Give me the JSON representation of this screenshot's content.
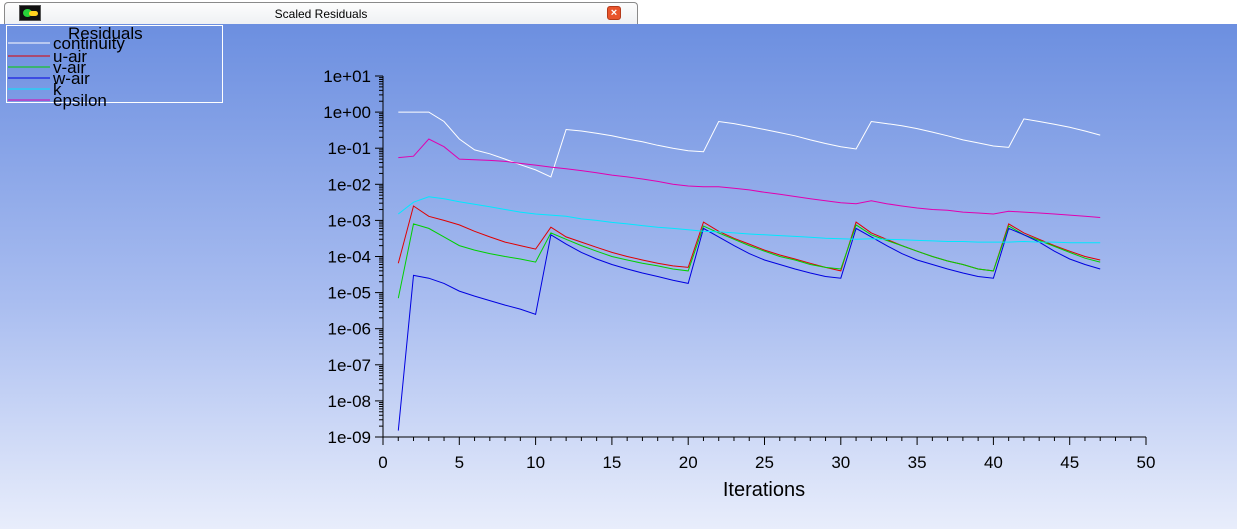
{
  "window": {
    "tab_title": "Scaled Residuals",
    "close_glyph": "×",
    "tab_icon": "fluent-app-icon",
    "close_icon": "close-icon"
  },
  "chart_data": {
    "type": "line",
    "title": "Residuals",
    "xlabel": "Iterations",
    "ylabel": "",
    "yscale": "log",
    "xlim": [
      0,
      50
    ],
    "ylim": [
      1e-09,
      10
    ],
    "xticks": [
      0,
      5,
      10,
      15,
      20,
      25,
      30,
      35,
      40,
      45,
      50
    ],
    "yticks": [
      1e-09,
      1e-08,
      1e-07,
      1e-06,
      1e-05,
      0.0001,
      0.001,
      0.01,
      0.1,
      1,
      10
    ],
    "ytick_labels": [
      "1e-09",
      "1e-08",
      "1e-07",
      "1e-06",
      "1e-05",
      "1e-04",
      "1e-03",
      "1e-02",
      "1e-01",
      "1e+00",
      "1e+01"
    ],
    "grid": false,
    "legend_position": "top-left",
    "x": [
      1,
      2,
      3,
      4,
      5,
      6,
      7,
      8,
      9,
      10,
      11,
      12,
      13,
      14,
      15,
      16,
      17,
      18,
      19,
      20,
      21,
      22,
      23,
      24,
      25,
      26,
      27,
      28,
      29,
      30,
      31,
      32,
      33,
      34,
      35,
      36,
      37,
      38,
      39,
      40,
      41,
      42,
      43,
      44,
      45,
      46,
      47
    ],
    "series": [
      {
        "name": "continuity",
        "color": "#ffffff",
        "values": [
          1.0,
          1.0,
          1.0,
          0.55,
          0.18,
          0.09,
          0.07,
          0.05,
          0.035,
          0.025,
          0.016,
          0.33,
          0.3,
          0.26,
          0.22,
          0.18,
          0.15,
          0.12,
          0.1,
          0.085,
          0.08,
          0.55,
          0.48,
          0.4,
          0.33,
          0.27,
          0.22,
          0.17,
          0.135,
          0.11,
          0.095,
          0.55,
          0.48,
          0.42,
          0.35,
          0.28,
          0.22,
          0.17,
          0.14,
          0.115,
          0.105,
          0.65,
          0.55,
          0.46,
          0.38,
          0.3,
          0.23
        ]
      },
      {
        "name": "u-air",
        "color": "#e00000",
        "values": [
          6.5e-05,
          0.0025,
          0.0013,
          0.001,
          0.00075,
          0.0005,
          0.00035,
          0.00025,
          0.0002,
          0.00016,
          0.00065,
          0.00035,
          0.00025,
          0.00018,
          0.00013,
          0.0001,
          8e-05,
          6.5e-05,
          5.5e-05,
          5e-05,
          0.0009,
          0.0005,
          0.00032,
          0.00022,
          0.00015,
          0.00011,
          8.5e-05,
          6.5e-05,
          5e-05,
          4e-05,
          0.0009,
          0.00045,
          0.0003,
          0.0002,
          0.00014,
          0.0001,
          7.5e-05,
          6e-05,
          4.5e-05,
          4e-05,
          0.0008,
          0.00045,
          0.0003,
          0.0002,
          0.00014,
          0.0001,
          8e-05
        ]
      },
      {
        "name": "v-air",
        "color": "#00d000",
        "values": [
          7e-06,
          0.0008,
          0.0006,
          0.00035,
          0.0002,
          0.00015,
          0.00012,
          0.0001,
          8.5e-05,
          7e-05,
          0.00045,
          0.0003,
          0.0002,
          0.00014,
          0.0001,
          8e-05,
          6.5e-05,
          5.5e-05,
          4.5e-05,
          4e-05,
          0.0007,
          0.00045,
          0.0003,
          0.0002,
          0.00014,
          0.0001,
          8e-05,
          6e-05,
          5e-05,
          4.5e-05,
          0.00075,
          0.0004,
          0.00028,
          0.0002,
          0.00014,
          0.0001,
          7.5e-05,
          6e-05,
          4.5e-05,
          4e-05,
          0.0007,
          0.0004,
          0.00028,
          0.00019,
          0.00013,
          9e-05,
          7e-05
        ]
      },
      {
        "name": "w-air",
        "color": "#0000e0",
        "values": [
          1.5e-09,
          3e-05,
          2.5e-05,
          1.8e-05,
          1.1e-05,
          8e-06,
          6e-06,
          4.5e-06,
          3.5e-06,
          2.5e-06,
          0.0004,
          0.00022,
          0.00013,
          8.5e-05,
          6e-05,
          4.5e-05,
          3.5e-05,
          2.8e-05,
          2.2e-05,
          1.8e-05,
          0.0006,
          0.00035,
          0.0002,
          0.00012,
          8e-05,
          6e-05,
          4.5e-05,
          3.5e-05,
          2.8e-05,
          2.5e-05,
          0.0006,
          0.00035,
          0.0002,
          0.00012,
          8e-05,
          6e-05,
          4.5e-05,
          3.5e-05,
          2.8e-05,
          2.5e-05,
          0.0006,
          0.0004,
          0.00025,
          0.00014,
          8.5e-05,
          6e-05,
          4.5e-05
        ]
      },
      {
        "name": "k",
        "color": "#00e8ff",
        "values": [
          0.0015,
          0.0032,
          0.0045,
          0.004,
          0.0033,
          0.0028,
          0.0024,
          0.002,
          0.0017,
          0.0015,
          0.0014,
          0.0013,
          0.0011,
          0.001,
          0.00088,
          0.0008,
          0.00072,
          0.00065,
          0.0006,
          0.00055,
          0.0005,
          0.00048,
          0.00045,
          0.00042,
          0.0004,
          0.00038,
          0.00036,
          0.00034,
          0.00032,
          0.00031,
          0.0003,
          0.00031,
          0.0003,
          0.00029,
          0.00028,
          0.00027,
          0.00026,
          0.00026,
          0.00025,
          0.00025,
          0.00025,
          0.00026,
          0.00025,
          0.00025,
          0.00024,
          0.00024,
          0.00024
        ]
      },
      {
        "name": "epsilon",
        "color": "#e000b0",
        "values": [
          0.055,
          0.06,
          0.18,
          0.11,
          0.05,
          0.048,
          0.046,
          0.043,
          0.038,
          0.034,
          0.03,
          0.027,
          0.024,
          0.021,
          0.018,
          0.016,
          0.014,
          0.012,
          0.01,
          0.009,
          0.0085,
          0.0085,
          0.0078,
          0.007,
          0.006,
          0.0053,
          0.0046,
          0.004,
          0.0035,
          0.0031,
          0.0029,
          0.0035,
          0.0029,
          0.0025,
          0.0022,
          0.002,
          0.0019,
          0.0017,
          0.0016,
          0.0015,
          0.0018,
          0.0017,
          0.0016,
          0.0015,
          0.0014,
          0.0013,
          0.0012
        ]
      }
    ]
  }
}
